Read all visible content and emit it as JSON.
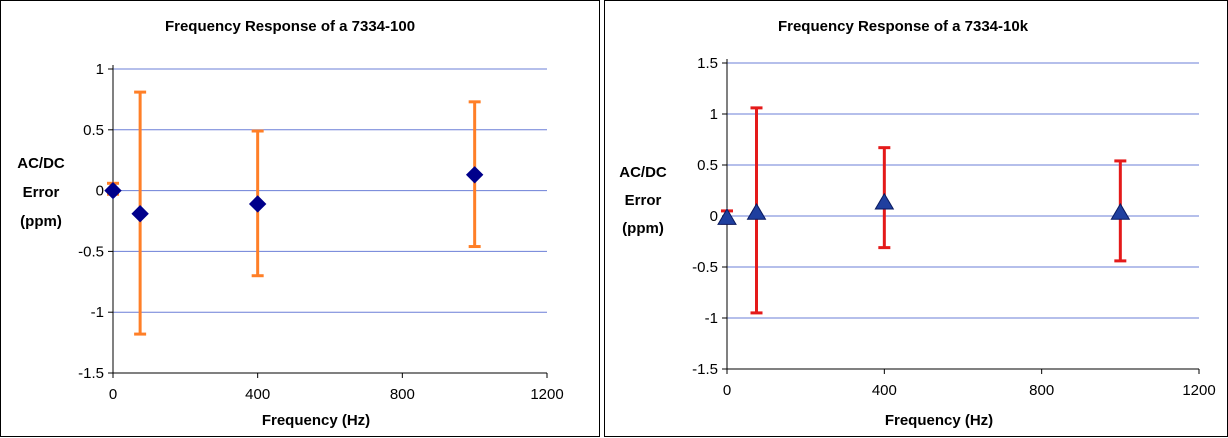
{
  "chart_data": [
    {
      "type": "scatter",
      "title": "Frequency Response of a 7334-100",
      "xlabel": "Frequency (Hz)",
      "ylabel_lines": [
        "AC/DC",
        "Error",
        "(ppm)"
      ],
      "xlim": [
        0,
        1200
      ],
      "ylim": [
        -1.5,
        1
      ],
      "xticks": [
        0,
        400,
        800,
        1200
      ],
      "yticks": [
        -1.5,
        -1,
        -0.5,
        0,
        0.5,
        1
      ],
      "ytick_labels": [
        "-1.5",
        "-1",
        "-0.5",
        "0",
        "0.5",
        "1"
      ],
      "grid": true,
      "legend": "none",
      "marker": "diamond",
      "marker_color": "#00008B",
      "error_bar_color": "#FF7F27",
      "grid_color": "#6B7FD7",
      "series": [
        {
          "x": [
            0,
            75,
            400,
            1000
          ],
          "y": [
            0,
            -0.19,
            -0.11,
            0.13
          ],
          "error_low": [
            -0.03,
            -1.18,
            -0.7,
            -0.46
          ],
          "error_high": [
            0.06,
            0.81,
            0.49,
            0.73
          ]
        }
      ]
    },
    {
      "type": "scatter",
      "title": "Frequency Response of a 7334-10k",
      "xlabel": "Frequency (Hz)",
      "ylabel_lines": [
        "AC/DC",
        "Error",
        "(ppm)"
      ],
      "xlim": [
        0,
        1200
      ],
      "ylim": [
        -1.5,
        1.5
      ],
      "xticks": [
        0,
        400,
        800,
        1200
      ],
      "yticks": [
        -1.5,
        -1,
        -0.5,
        0,
        0.5,
        1,
        1.5
      ],
      "ytick_labels": [
        "-1.5",
        "-1",
        "-0.5",
        "0",
        "0.5",
        "1",
        "1.5"
      ],
      "grid": true,
      "legend": "none",
      "marker": "triangle",
      "marker_color": "#1F3F9F",
      "error_bar_color": "#E41A1A",
      "grid_color": "#6B7FD7",
      "series": [
        {
          "x": [
            0,
            75,
            400,
            1000
          ],
          "y": [
            -0.02,
            0.03,
            0.13,
            0.03
          ],
          "error_low": [
            -0.07,
            -0.95,
            -0.31,
            -0.44
          ],
          "error_high": [
            0.05,
            1.06,
            0.67,
            0.54
          ]
        }
      ]
    }
  ]
}
